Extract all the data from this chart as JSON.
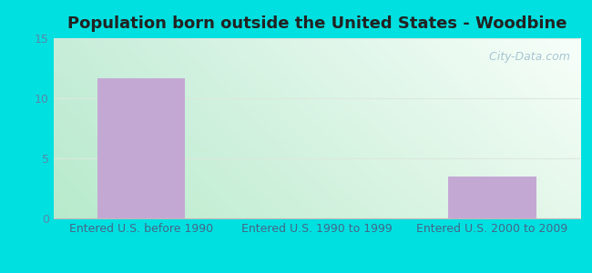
{
  "title": "Population born outside the United States - Woodbine",
  "categories": [
    "Entered U.S. before 1990",
    "Entered U.S. 1990 to 1999",
    "Entered U.S. 2000 to 2009"
  ],
  "values": [
    11.7,
    0,
    3.5
  ],
  "bar_color": "#c4a8d4",
  "ylim": [
    0,
    15
  ],
  "yticks": [
    0,
    5,
    10,
    15
  ],
  "title_fontsize": 13,
  "tick_fontsize": 9,
  "outer_bg": "#00e0e0",
  "watermark_text": "  City-Data.com",
  "watermark_color": "#a0bfcf",
  "grid_color": "#dde8dd",
  "tick_color": "#5588aa",
  "title_color": "#222222",
  "xlabel_color": "#446688"
}
